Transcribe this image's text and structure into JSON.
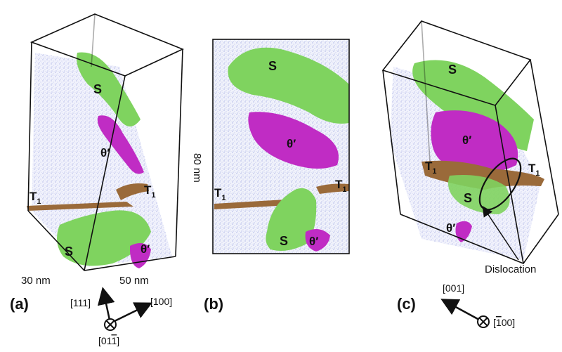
{
  "panels": {
    "a": {
      "tag": "(a)",
      "phases": {
        "s_top": "S",
        "theta_top": "θ′",
        "t1_left": "T",
        "t1_left_sub": "1",
        "t1_right": "T",
        "t1_right_sub": "1",
        "s_bottom": "S",
        "theta_bottom": "θ′"
      },
      "dims": {
        "height": "80 nm",
        "width": "50 nm",
        "depth": "30 nm"
      },
      "axes": {
        "up": "[111]",
        "right": "[100]",
        "out": "[01",
        "out_bar": "1",
        "out_close": "]"
      }
    },
    "b": {
      "tag": "(b)",
      "phases": {
        "s_top": "S",
        "theta": "θ′",
        "t1_left": "T",
        "t1_left_sub": "1",
        "t1_right": "T",
        "t1_right_sub": "1",
        "s_bottom": "S",
        "theta_bottom": "θ′"
      }
    },
    "c": {
      "tag": "(c)",
      "phases": {
        "s_top": "S",
        "theta": "θ′",
        "t1_left": "T",
        "t1_left_sub": "1",
        "t1_right": "T",
        "t1_right_sub": "1",
        "s_mid": "S",
        "theta_bottom": "θ′"
      },
      "dislocation": "Dislocation",
      "axes": {
        "up": "[001]",
        "out_open": "[",
        "out_bar": "1",
        "out_close": "00]"
      }
    }
  },
  "colors": {
    "s_phase": "#7fd35f",
    "theta_phase": "#c02cc4",
    "t1_phase": "#9a6a3a",
    "matrix": "#8a93dc"
  }
}
